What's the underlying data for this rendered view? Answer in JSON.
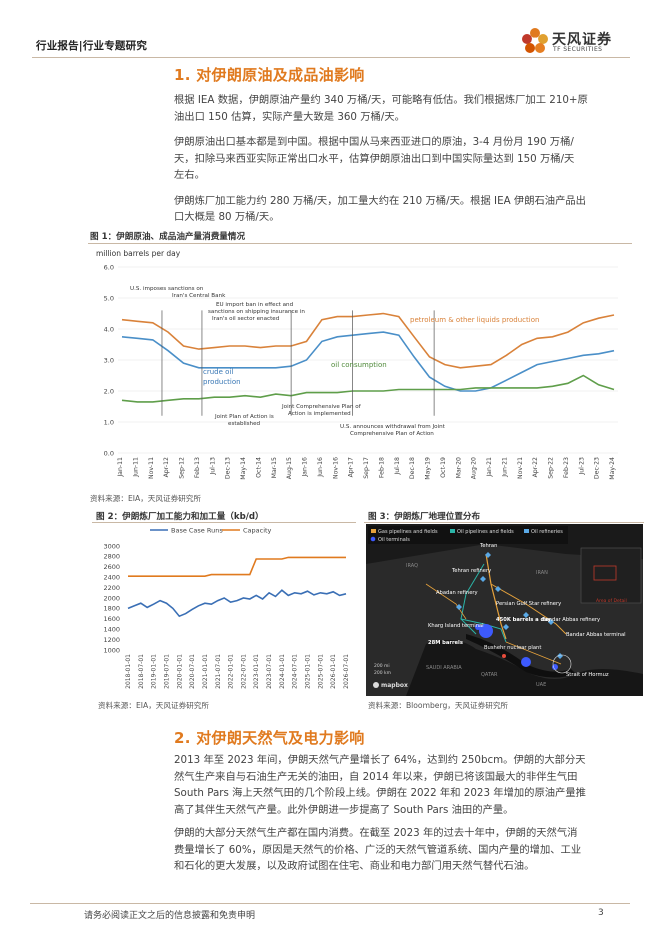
{
  "header": {
    "section": "行业报告|行业专题研究",
    "brand_cn": "天风证券",
    "brand_en": "TF SECURITIES"
  },
  "s1": {
    "title": "1. 对伊朗原油及成品油影响",
    "p1a": "根据 IEA 数据，伊朗原油产量约 340 万桶/天，可能略有低估。我们根据炼厂加工 210+原",
    "p1b": "油出口 150 估算，实际产量大致是 360 万桶/天。",
    "p2a": "伊朗原油出口基本都是到中国。根据中国从马来西亚进口的原油，3-4 月份月 190 万桶/",
    "p2b": "天，扣除马来西亚实际正常出口水平，估算伊朗原油出口到中国实际量达到 150 万桶/天",
    "p2c": "左右。",
    "p3a": "伊朗炼厂加工能力约 280 万桶/天，加工量大约在 210 万桶/天。根据 IEA 伊朗石油产品出",
    "p3b": "口大概是 80 万桶/天。"
  },
  "fig1": {
    "title": "图 1：伊朗原油、成品油产量消费量情况",
    "source": "资料来源：EIA，天风证券研究所",
    "chart_data": {
      "type": "line",
      "ylabel": "million barrels per day",
      "ylim": [
        0.0,
        6.0
      ],
      "yticks": [
        "0.0",
        "1.0",
        "2.0",
        "3.0",
        "4.0",
        "5.0",
        "6.0"
      ],
      "xticks": [
        "Jan-11",
        "Jun-11",
        "Nov-11",
        "Apr-12",
        "Sep-12",
        "Feb-13",
        "Jul-13",
        "Dec-13",
        "May-14",
        "Oct-14",
        "Mar-15",
        "Aug-15",
        "Jan-16",
        "Jun-16",
        "Nov-16",
        "Apr-17",
        "Sep-17",
        "Feb-18",
        "Jul-18",
        "Dec-18",
        "May-19",
        "Oct-19",
        "Mar-20",
        "Aug-20",
        "Jan-21",
        "Jun-21",
        "Nov-21",
        "Apr-22",
        "Sep-22",
        "Feb-23",
        "Jul-23",
        "Dec-23",
        "May-24"
      ],
      "series": [
        {
          "name": "petroleum & other liquids production",
          "color": "#d9823a",
          "values": [
            4.3,
            4.25,
            4.2,
            3.9,
            3.45,
            3.35,
            3.4,
            3.45,
            3.45,
            3.4,
            3.45,
            3.45,
            3.6,
            4.3,
            4.4,
            4.4,
            4.45,
            4.5,
            4.4,
            3.75,
            3.1,
            2.85,
            2.75,
            2.8,
            2.85,
            3.15,
            3.5,
            3.7,
            3.75,
            3.9,
            4.2,
            4.35,
            4.45
          ]
        },
        {
          "name": "crude oil production",
          "color": "#4a8fc8",
          "values": [
            3.75,
            3.7,
            3.65,
            3.3,
            2.9,
            2.75,
            2.75,
            2.75,
            2.75,
            2.75,
            2.75,
            2.8,
            3.0,
            3.6,
            3.75,
            3.8,
            3.85,
            3.9,
            3.8,
            3.1,
            2.45,
            2.15,
            2.0,
            2.0,
            2.1,
            2.35,
            2.6,
            2.85,
            2.95,
            3.05,
            3.15,
            3.2,
            3.3
          ]
        },
        {
          "name": "oil consumption",
          "color": "#5f9e4a",
          "values": [
            1.7,
            1.65,
            1.65,
            1.7,
            1.75,
            1.75,
            1.8,
            1.8,
            1.85,
            1.8,
            1.9,
            1.85,
            1.95,
            1.95,
            1.95,
            2.0,
            2.0,
            2.0,
            2.05,
            2.05,
            2.05,
            2.05,
            2.05,
            2.1,
            2.1,
            2.1,
            2.1,
            2.1,
            2.15,
            2.25,
            2.5,
            2.2,
            2.05
          ]
        }
      ],
      "annotations": [
        "U.S. imposes sanctions on Iran's Central Bank",
        "EU import ban in effect and sanctions on shipping insurance in Iran's oil sector enacted",
        "Joint Plan of Action is established",
        "Joint Comprehensive Plan of Action is implemented",
        "U.S. announces withdrawal from Joint Comprehensive Plan of Action"
      ],
      "label_production": "petroleum & other liquids production",
      "label_crude": "crude oil",
      "label_crude2": "production",
      "label_consumption": "oil consumption",
      "grid": true
    }
  },
  "fig2": {
    "title": "图 2：伊朗炼厂加工能力和加工量（kb/d）",
    "source": "资料来源：EIA，天风证券研究所",
    "chart_data": {
      "type": "line",
      "ylim": [
        1000,
        3000
      ],
      "yticks": [
        "1000",
        "1200",
        "1400",
        "1600",
        "1800",
        "2000",
        "2200",
        "2400",
        "2600",
        "2800",
        "3000"
      ],
      "xticks": [
        "2018-01-01",
        "2018-07-01",
        "2019-01-01",
        "2019-07-01",
        "2020-01-01",
        "2020-07-01",
        "2021-01-01",
        "2021-07-01",
        "2022-01-01",
        "2022-07-01",
        "2023-01-01",
        "2023-07-01",
        "2024-01-01",
        "2024-07-01",
        "2025-01-01",
        "2025-07-01",
        "2026-01-01",
        "2026-07-01"
      ],
      "series": [
        {
          "name": "Base Case Runs",
          "color": "#3a6fb5",
          "values": [
            1800,
            1850,
            1900,
            1820,
            1880,
            1950,
            1900,
            1800,
            1650,
            1700,
            1780,
            1850,
            1900,
            1880,
            1950,
            2000,
            1920,
            1950,
            2000,
            1980,
            2050,
            1980,
            2100,
            2030,
            2150,
            2050,
            2100,
            2080,
            2130,
            2060,
            2100,
            2080,
            2120,
            2050,
            2080
          ]
        },
        {
          "name": "Capacity",
          "color": "#e07a1f",
          "values": [
            2420,
            2420,
            2420,
            2420,
            2420,
            2420,
            2420,
            2420,
            2420,
            2420,
            2420,
            2420,
            2420,
            2450,
            2450,
            2450,
            2450,
            2450,
            2450,
            2450,
            2750,
            2750,
            2750,
            2750,
            2750,
            2780,
            2780,
            2780,
            2780,
            2780,
            2780,
            2780,
            2780,
            2780,
            2780
          ]
        }
      ]
    }
  },
  "fig3": {
    "title": "图 3：伊朗炼厂地理位置分布",
    "source": "资料来源：Bloomberg，天风证券研究所",
    "legend": [
      "Gas pipelines and fields",
      "Oil pipelines and fields",
      "Oil refineries",
      "Oil terminals"
    ],
    "colors": {
      "gas": "#e6a23c",
      "oil": "#2bb5a8",
      "refinery": "#5aa9e6",
      "terminal": "#3d5afe"
    },
    "labels": {
      "tehran": "Tehran",
      "tehran_ref": "Tehran refinery",
      "abadan": "Abadan refinery",
      "pg_star": "Persian Gulf Star refinery",
      "barrels": "450K barrels a day",
      "bandar": "Bandar Abbas refinery",
      "kharg": "Kharg Island terminal",
      "mb28": "28M barrels",
      "bushehr": "Bushehr nuclear plant",
      "bandar_term": "Bandar Abbas terminal",
      "hormuz": "Strait of Hormuz",
      "iraq": "IRAQ",
      "iran": "IRAN",
      "saudi": "SAUDI ARABIA",
      "qatar": "QATAR",
      "uae": "UAE",
      "area": "Area of Detail",
      "mapbox": "mapbox",
      "scale1": "200 mi",
      "scale2": "200 km"
    }
  },
  "s2": {
    "title": "2. 对伊朗天然气及电力影响",
    "p1a": "2013 年至 2023 年间，伊朗天然气产量增长了 64%，达到约 250bcm。伊朗的大部分天",
    "p1b": "然气生产来自与石油生产无关的油田，自 2014 年以来，伊朗已将该国最大的非伴生气田",
    "p1c": "South Pars 海上天然气田的几个阶段上线。伊朗在 2022 年和 2023 年增加的原油产量推",
    "p1d": "高了其伴生天然气产量。此外伊朗进一步提高了 South Pars 油田的产量。",
    "p2a": "伊朗的大部分天然气生产都在国内消费。在截至 2023 年的过去十年中，伊朗的天然气消",
    "p2b": "费量增长了 60%，原因是天然气的价格、广泛的天然气管道系统、国内产量的增加、工业",
    "p2c": "和石化的更大发展，以及政府试图在住宅、商业和电力部门用天然气替代石油。"
  },
  "footer": {
    "disclaimer": "请务必阅读正文之后的信息披露和免责申明",
    "page": "3"
  }
}
